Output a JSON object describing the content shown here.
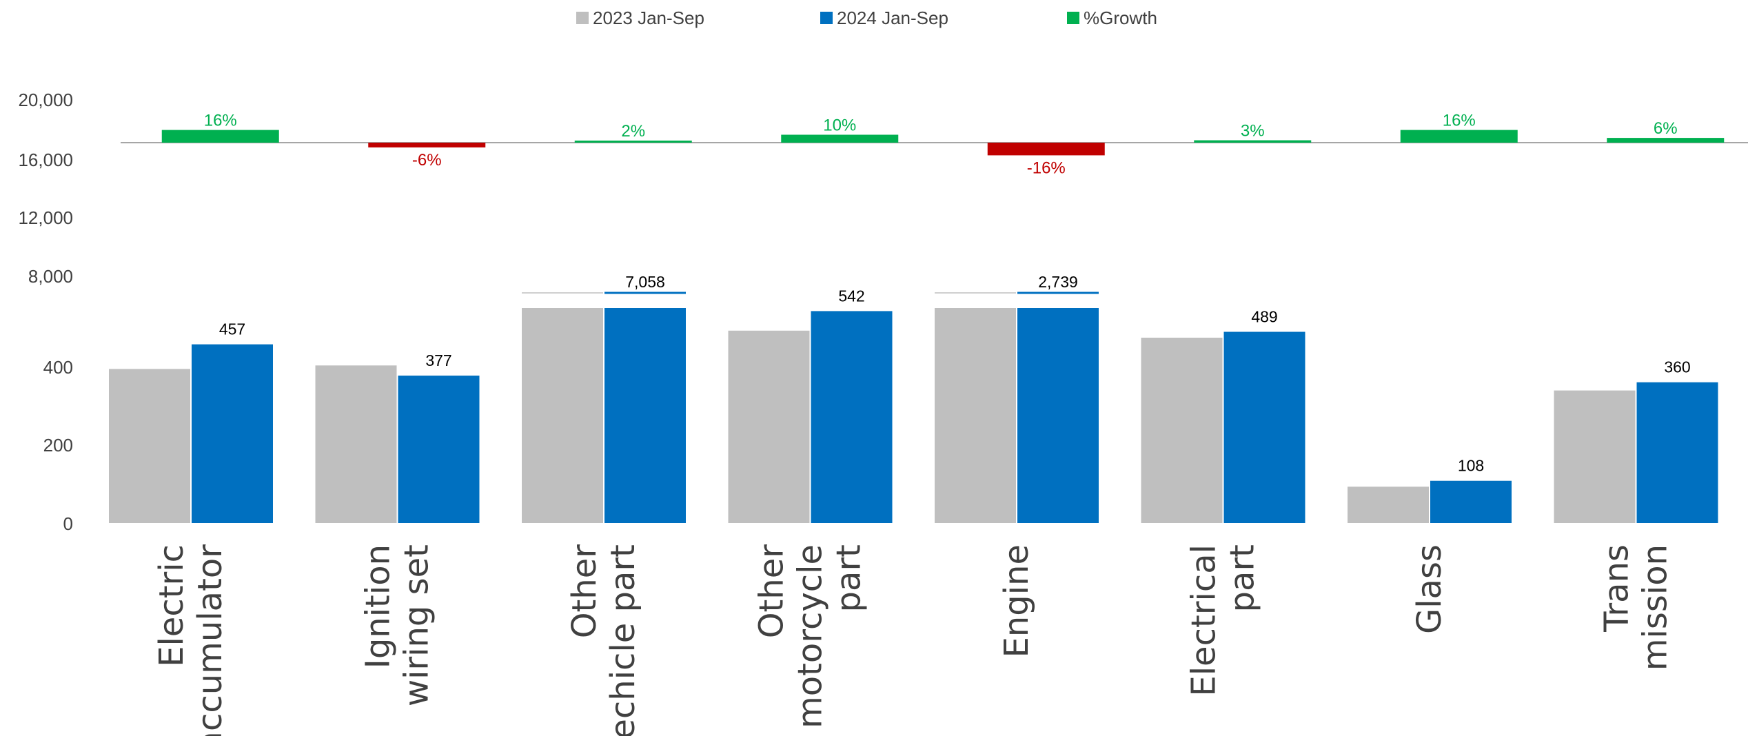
{
  "legend": [
    {
      "label": "2023 Jan-Sep",
      "color": "#bfbfbf"
    },
    {
      "label": "2024 Jan-Sep",
      "color": "#0070c0"
    },
    {
      "label": "%Growth",
      "color": "#00b050"
    }
  ],
  "colors": {
    "negative_growth": "#c00000",
    "positive_growth": "#00b050",
    "series_2023": "#bfbfbf",
    "series_2024": "#0070c0"
  },
  "y_ticks": [
    "20,000",
    "16,000",
    "12,000",
    "8,000",
    "400",
    "200",
    "0"
  ],
  "chart_data": {
    "type": "bar",
    "axis_break": true,
    "categories": [
      [
        "Electric",
        "accumulator"
      ],
      [
        "Ignition",
        "wiring set"
      ],
      [
        "Other",
        "vechicle part"
      ],
      [
        "Other",
        "motorcycle",
        "part"
      ],
      [
        "Engine"
      ],
      [
        "Electrical",
        "part"
      ],
      [
        "Glass"
      ],
      [
        "Trans",
        "mission"
      ]
    ],
    "series": [
      {
        "name": "2023 Jan-Sep",
        "values": [
          394,
          403,
          6880,
          492,
          3250,
          474,
          93,
          339
        ]
      },
      {
        "name": "2024 Jan-Sep",
        "values": [
          457,
          377,
          7058,
          542,
          2739,
          489,
          108,
          360
        ],
        "labels": [
          "457",
          "377",
          "7,058",
          "542",
          "2,739",
          "489",
          "108",
          "360"
        ]
      }
    ],
    "growth": {
      "name": "%Growth",
      "values": [
        16,
        -6,
        2,
        10,
        -16,
        3,
        16,
        6
      ],
      "labels": [
        "16%",
        "-6%",
        "2%",
        "10%",
        "-16%",
        "3%",
        "16%",
        "6%"
      ]
    },
    "ylim_lower": [
      0,
      600
    ],
    "ylim_upper": [
      8000,
      20000
    ],
    "legend_position": "top",
    "grid": false
  }
}
